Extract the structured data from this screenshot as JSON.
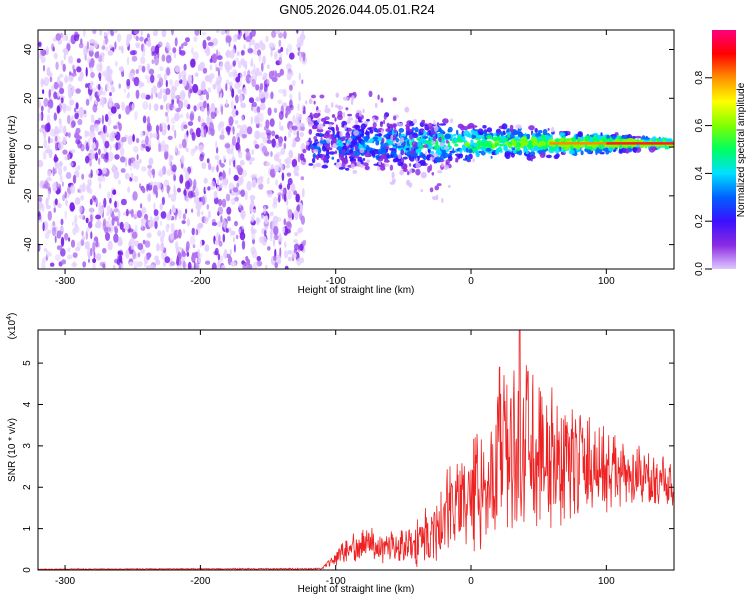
{
  "title": "GN05.2026.044.05.01.R24",
  "chart_data": [
    {
      "type": "heatmap",
      "name": "spectrogram",
      "xlabel": "Height of straight line (km)",
      "ylabel": "Frequency (Hz)",
      "xlim": [
        -320,
        150
      ],
      "ylim": [
        -50,
        48
      ],
      "xticks": [
        -300,
        -200,
        -100,
        0,
        100
      ],
      "xtick_labels": [
        "-300",
        "-200",
        "-100",
        "0",
        "100"
      ],
      "yticks": [
        -40,
        -20,
        0,
        20,
        40
      ],
      "ytick_labels": [
        "-40",
        "-20",
        "0",
        "20",
        "40"
      ],
      "noise_region_x": [
        -320,
        -123
      ],
      "signal_line": {
        "x": [
          -120,
          150
        ],
        "frequency_hz": 1.5
      },
      "colorbar": {
        "label": "Normalized spectral amplitude",
        "range": [
          0,
          1
        ],
        "ticks": [
          0.0,
          0.2,
          0.4,
          0.6,
          0.8
        ],
        "tick_labels": [
          "0.0",
          "0.2",
          "0.4",
          "0.6",
          "0.8"
        ],
        "colors": [
          "#ffffff",
          "#e0c8ff",
          "#8a2be2",
          "#3a10ff",
          "#0060ff",
          "#00e0ff",
          "#00ff60",
          "#80ff00",
          "#ffff00",
          "#ff9000",
          "#ff0000",
          "#ff0080"
        ]
      }
    },
    {
      "type": "line",
      "name": "snr",
      "xlabel": "Height of straight line (km)",
      "ylabel": "SNR (10 * v/v)",
      "y_scale_label": "(x10",
      "y_scale_exp": "4",
      "y_scale_close": ")",
      "xlim": [
        -320,
        150
      ],
      "ylim": [
        0,
        5.8
      ],
      "xticks": [
        -300,
        -200,
        -100,
        0,
        100
      ],
      "xtick_labels": [
        "-300",
        "-200",
        "-100",
        "0",
        "100"
      ],
      "yticks": [
        0,
        1,
        2,
        3,
        4,
        5
      ],
      "ytick_labels": [
        "0",
        "1",
        "2",
        "3",
        "4",
        "5"
      ],
      "color": "#ee2222",
      "envelope": {
        "x": [
          -320,
          -110,
          -100,
          -90,
          -80,
          -70,
          -60,
          -50,
          -40,
          -30,
          -20,
          -10,
          0,
          10,
          20,
          30,
          40,
          50,
          60,
          70,
          80,
          90,
          100,
          110,
          120,
          130,
          140,
          150
        ],
        "mid": [
          0.02,
          0.03,
          0.3,
          0.5,
          0.7,
          0.6,
          0.55,
          0.6,
          0.7,
          0.9,
          1.3,
          1.6,
          1.9,
          2.1,
          2.6,
          2.8,
          3.0,
          2.9,
          2.7,
          2.6,
          2.6,
          2.5,
          2.4,
          2.3,
          2.2,
          2.2,
          2.1,
          2.1
        ],
        "amp": [
          0.01,
          0.02,
          0.2,
          0.35,
          0.45,
          0.45,
          0.4,
          0.5,
          0.7,
          0.9,
          1.1,
          1.3,
          1.5,
          1.7,
          2.0,
          2.4,
          2.6,
          2.3,
          2.1,
          1.8,
          1.5,
          1.3,
          1.2,
          1.0,
          0.9,
          0.8,
          0.7,
          0.7
        ]
      },
      "peaks": [
        {
          "x": 36,
          "y": 5.8
        },
        {
          "x": 21,
          "y": 4.9
        },
        {
          "x": 42,
          "y": 4.8
        }
      ]
    }
  ]
}
